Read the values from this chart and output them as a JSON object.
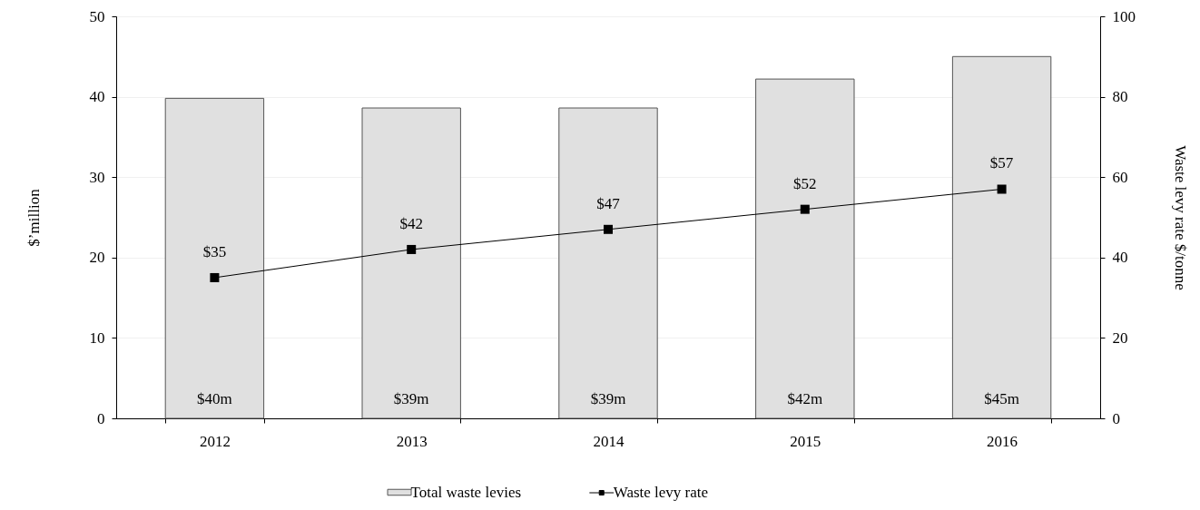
{
  "chart_data": {
    "type": "bar",
    "categories": [
      "2012",
      "2013",
      "2014",
      "2015",
      "2016"
    ],
    "ylabel": "$’million",
    "y2label": "Waste levy rate $/tonne",
    "ylim": [
      0,
      50
    ],
    "yticks": [
      0,
      10,
      20,
      30,
      40,
      50
    ],
    "y2lim": [
      0,
      100
    ],
    "y2ticks": [
      0,
      20,
      40,
      60,
      80,
      100
    ],
    "grid": "y",
    "legend": "bottom",
    "marker": "square",
    "line_style": "solid",
    "series": [
      {
        "name": "Total waste levies",
        "color": "#e0e0e0",
        "values": [
          39.8,
          38.6,
          38.6,
          42.2,
          45.0
        ],
        "value_labels": [
          "$40m",
          "$39m",
          "$39m",
          "$42m",
          "$45m"
        ]
      },
      {
        "name": "Waste levy rate",
        "type": "line",
        "axis": "y2",
        "color": "#000000",
        "values": [
          35,
          42,
          47,
          52,
          57
        ],
        "value_labels": [
          "$35",
          "$42",
          "$47",
          "$52",
          "$57"
        ]
      }
    ]
  }
}
